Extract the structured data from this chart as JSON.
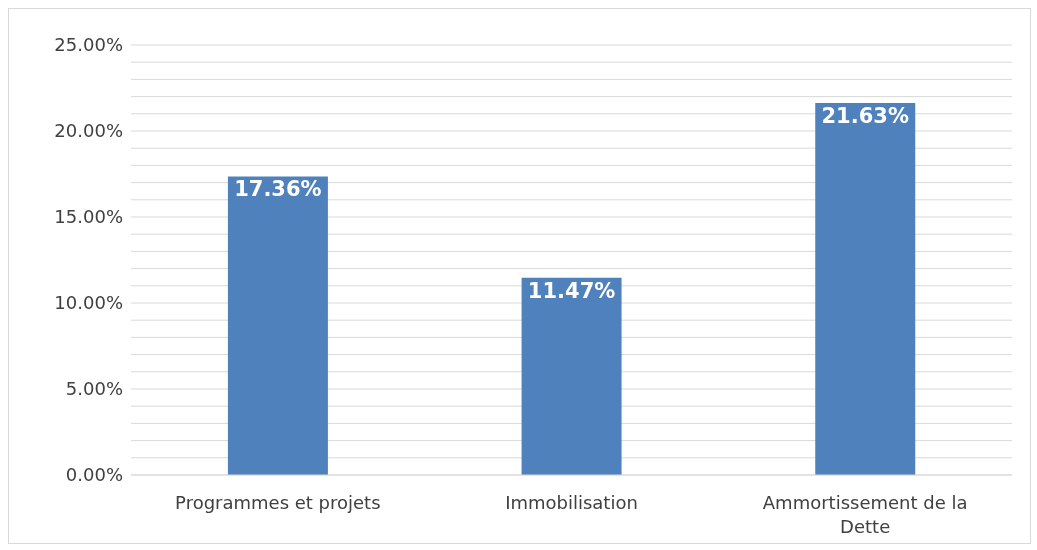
{
  "chart_data": {
    "type": "bar",
    "categories": [
      "Programmes et projets",
      "Immobilisation",
      "Ammortissement de la Dette"
    ],
    "values": [
      17.36,
      11.47,
      21.63
    ],
    "value_labels": [
      "17.36%",
      "11.47%",
      "21.63%"
    ],
    "color": "#4f81bd",
    "ylim": [
      0,
      25
    ],
    "yticks": [
      {
        "value": 0,
        "label": "0.00%"
      },
      {
        "value": 1,
        "label": null
      },
      {
        "value": 2,
        "label": null
      },
      {
        "value": 3,
        "label": null
      },
      {
        "value": 4,
        "label": null
      },
      {
        "value": 5,
        "label": "5.00%"
      },
      {
        "value": 6,
        "label": null
      },
      {
        "value": 7,
        "label": null
      },
      {
        "value": 8,
        "label": null
      },
      {
        "value": 9,
        "label": null
      },
      {
        "value": 10,
        "label": "10.00%"
      },
      {
        "value": 11,
        "label": null
      },
      {
        "value": 12,
        "label": null
      },
      {
        "value": 13,
        "label": null
      },
      {
        "value": 14,
        "label": null
      },
      {
        "value": 15,
        "label": "15.00%"
      },
      {
        "value": 16,
        "label": null
      },
      {
        "value": 17,
        "label": null
      },
      {
        "value": 18,
        "label": null
      },
      {
        "value": 19,
        "label": null
      },
      {
        "value": 20,
        "label": "20.00%"
      },
      {
        "value": 21,
        "label": null
      },
      {
        "value": 22,
        "label": null
      },
      {
        "value": 23,
        "label": null
      },
      {
        "value": 24,
        "label": null
      },
      {
        "value": 25,
        "label": "25.00%"
      }
    ],
    "grid": true
  }
}
